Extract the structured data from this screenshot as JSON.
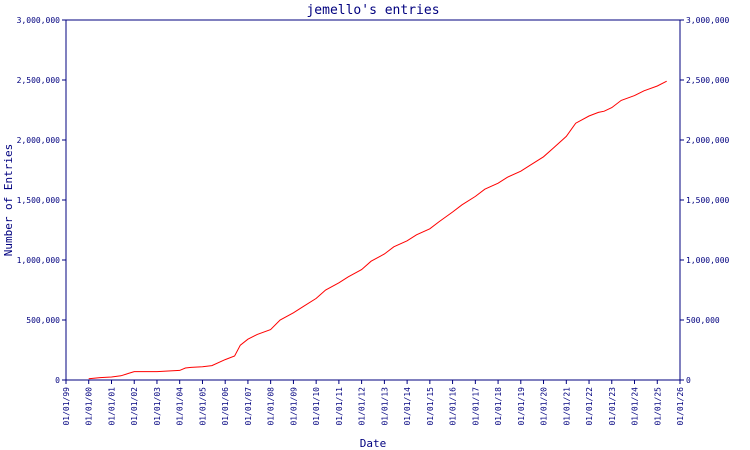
{
  "chart_data": {
    "type": "line",
    "title": "jemello's entries",
    "xlabel": "Date",
    "ylabel": "Number of Entries",
    "ylim": [
      0,
      3000000
    ],
    "xlim": [
      "1999-01-01",
      "2026-01-01"
    ],
    "y_ticks": [
      0,
      500000,
      1000000,
      1500000,
      2000000,
      2500000,
      3000000
    ],
    "y_tick_labels": [
      "0",
      "500,000",
      "1,000,000",
      "1,500,000",
      "2,000,000",
      "2,500,000",
      "3,000,000"
    ],
    "x_tick_labels": [
      "01/01/99",
      "01/01/00",
      "01/01/01",
      "01/01/02",
      "01/01/03",
      "01/01/04",
      "01/01/05",
      "01/01/06",
      "01/01/07",
      "01/01/08",
      "01/01/09",
      "01/01/10",
      "01/01/11",
      "01/01/12",
      "01/01/13",
      "01/01/14",
      "01/01/15",
      "01/01/16",
      "01/01/17",
      "01/01/18",
      "01/01/19",
      "01/01/20",
      "01/01/21",
      "01/01/22",
      "01/01/23",
      "01/01/24",
      "01/01/25",
      "01/01/26"
    ],
    "grid": false,
    "colors": {
      "axis": "#00007f",
      "line": "#ff0000",
      "text": "#00007f"
    },
    "series": [
      {
        "x": [
          "2000-01-01",
          "2000-07-01",
          "2001-01-01",
          "2001-06-01",
          "2001-10-01",
          "2002-01-01",
          "2002-07-01",
          "2003-01-01",
          "2003-07-01",
          "2004-01-01",
          "2004-04-01",
          "2004-07-01",
          "2005-01-01",
          "2005-06-01",
          "2006-01-01",
          "2006-06-01",
          "2006-09-01",
          "2007-01-01",
          "2007-06-01",
          "2008-01-01",
          "2008-06-01",
          "2009-01-01",
          "2009-06-01",
          "2010-01-01",
          "2010-06-01",
          "2011-01-01",
          "2011-06-01",
          "2012-01-01",
          "2012-06-01",
          "2013-01-01",
          "2013-06-01",
          "2014-01-01",
          "2014-06-01",
          "2015-01-01",
          "2015-06-01",
          "2016-01-01",
          "2016-06-01",
          "2017-01-01",
          "2017-06-01",
          "2018-01-01",
          "2018-06-01",
          "2019-01-01",
          "2019-06-01",
          "2020-01-01",
          "2020-06-01",
          "2021-01-01",
          "2021-06-01",
          "2022-01-01",
          "2022-06-01",
          "2022-09-01",
          "2023-01-01",
          "2023-06-01",
          "2024-01-01",
          "2024-06-01",
          "2025-01-01",
          "2025-06-01"
        ],
        "y": [
          10000,
          20000,
          25000,
          35000,
          55000,
          70000,
          70000,
          70000,
          75000,
          80000,
          100000,
          105000,
          110000,
          120000,
          170000,
          200000,
          290000,
          340000,
          380000,
          420000,
          500000,
          560000,
          610000,
          680000,
          750000,
          810000,
          860000,
          920000,
          990000,
          1050000,
          1110000,
          1160000,
          1210000,
          1260000,
          1320000,
          1400000,
          1460000,
          1530000,
          1590000,
          1640000,
          1690000,
          1740000,
          1790000,
          1860000,
          1930000,
          2030000,
          2140000,
          2200000,
          2230000,
          2240000,
          2270000,
          2330000,
          2370000,
          2410000,
          2450000,
          2490000
        ]
      }
    ]
  }
}
